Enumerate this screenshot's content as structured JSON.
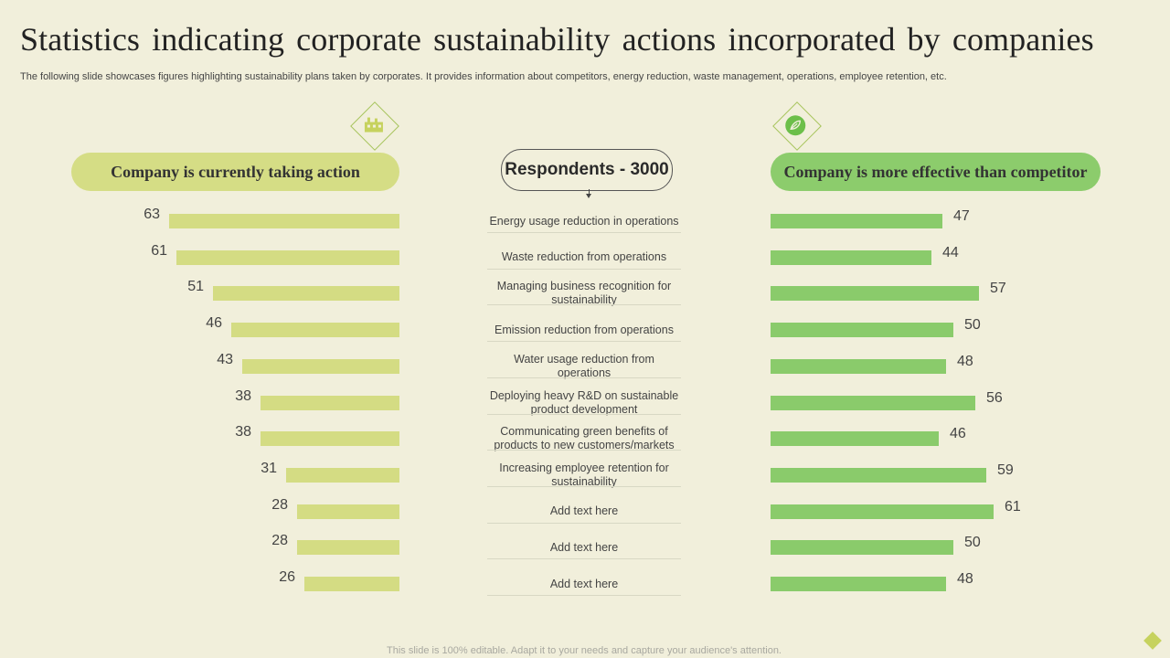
{
  "title": "Statistics indicating corporate sustainability actions incorporated by companies",
  "subtitle": "The following slide showcases figures highlighting sustainability plans taken by corporates. It provides information about competitors, energy reduction, waste management, operations, employee retention, etc.",
  "respondents": "Respondents - 3000",
  "footer": "This slide is 100% editable. Adapt it to your needs and capture your audience's attention.",
  "icons": {
    "left": "factory-icon",
    "right": "eco-leaf-icon"
  },
  "colors": {
    "left_series": "#d4dc83",
    "right_series": "#8acb6b",
    "background": "#f1efdb"
  },
  "chart_data": {
    "type": "bar",
    "categories": [
      "Energy usage reduction in operations",
      "Waste reduction from operations",
      "Managing business recognition for sustainability",
      "Emission reduction from operations",
      "Water usage reduction from operations",
      "Deploying heavy R&D on sustainable product development",
      "Communicating green benefits of products to new customers/markets",
      "Increasing employee retention for sustainability",
      "Add text here",
      "Add text here",
      "Add text here"
    ],
    "series": [
      {
        "name": "Company is currently taking action",
        "values": [
          63,
          61,
          51,
          46,
          43,
          38,
          38,
          31,
          28,
          28,
          26
        ]
      },
      {
        "name": "Company is more effective than competitor",
        "values": [
          47,
          44,
          57,
          50,
          48,
          56,
          46,
          59,
          61,
          50,
          48
        ]
      }
    ]
  }
}
